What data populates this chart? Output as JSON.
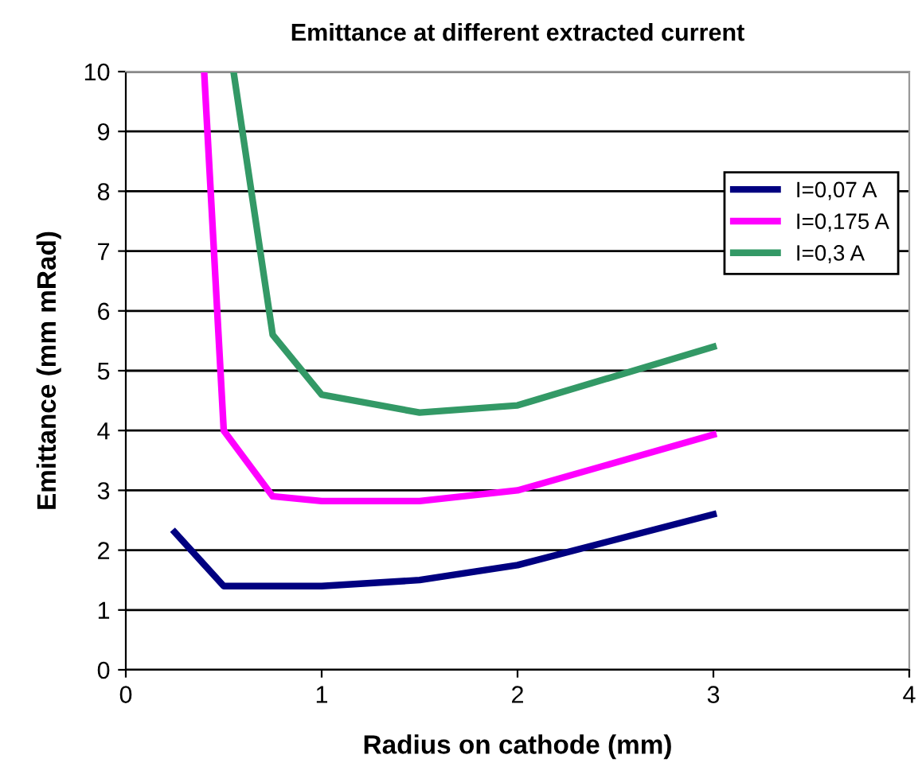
{
  "chart_data": {
    "type": "line",
    "title": "Emittance at different extracted current",
    "xlabel": "Radius on cathode (mm)",
    "ylabel": "Emittance (mm mRad)",
    "xlim": [
      0,
      4
    ],
    "xticks": [
      0,
      1,
      2,
      3,
      4
    ],
    "ylim": [
      0,
      10
    ],
    "yticks": [
      0,
      1,
      2,
      3,
      4,
      5,
      6,
      7,
      8,
      9,
      10
    ],
    "grid": "y",
    "legend": "top right",
    "marker": "none",
    "line_style": "solid",
    "series": [
      {
        "name": "I=0,07 A",
        "color": "#000080",
        "x": [
          0.25,
          0.5,
          0.75,
          1,
          1.5,
          2,
          3
        ],
        "values": [
          2.3,
          1.4,
          1.4,
          1.4,
          1.5,
          1.75,
          2.6
        ]
      },
      {
        "name": "I=0,175 A",
        "color": "#ff00ff",
        "x": [
          0.4,
          0.5,
          0.75,
          1,
          1.5,
          2,
          3
        ],
        "values": [
          10,
          4.0,
          2.9,
          2.82,
          2.82,
          3.0,
          3.93
        ]
      },
      {
        "name": "I=0,3 A",
        "color": "#339966",
        "x": [
          0.55,
          0.75,
          1,
          1.5,
          2,
          3
        ],
        "values": [
          10,
          5.6,
          4.6,
          4.3,
          4.42,
          5.4
        ]
      }
    ]
  }
}
